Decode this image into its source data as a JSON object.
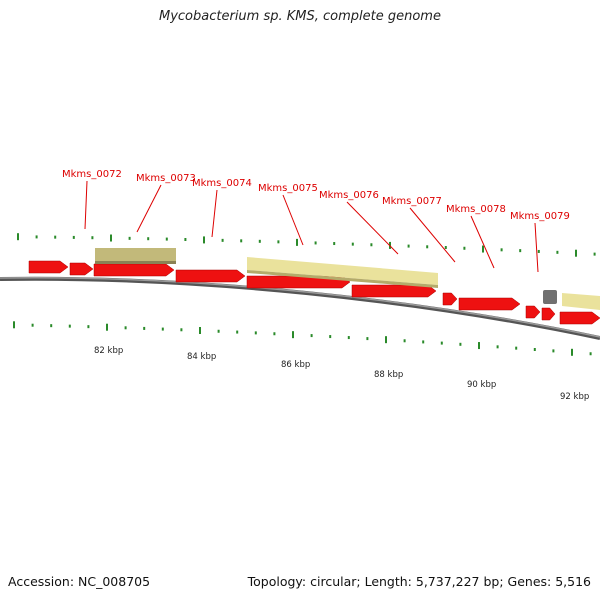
{
  "title": "Mycobacterium sp. KMS, complete genome",
  "footer": {
    "accession": "Accession: NC_008705",
    "stats": "Topology: circular; Length: 5,737,227 bp; Genes: 5,516"
  },
  "colors": {
    "forward_gene": "#ee1111",
    "reverse_gene_highlight": "#eae29c",
    "reverse_gene_dark": "#c2b97a",
    "other_feature": "#707070",
    "tick": "#2a8a2a",
    "label": "#dd0000",
    "backbone": "#777777"
  },
  "gene_labels": [
    "Mkms_0072",
    "Mkms_0073",
    "Mkms_0074",
    "Mkms_0075",
    "Mkms_0076",
    "Mkms_0077",
    "Mkms_0078",
    "Mkms_0079"
  ],
  "scale_labels": [
    "82 kbp",
    "84 kbp",
    "86 kbp",
    "88 kbp",
    "90 kbp",
    "92 kbp"
  ]
}
